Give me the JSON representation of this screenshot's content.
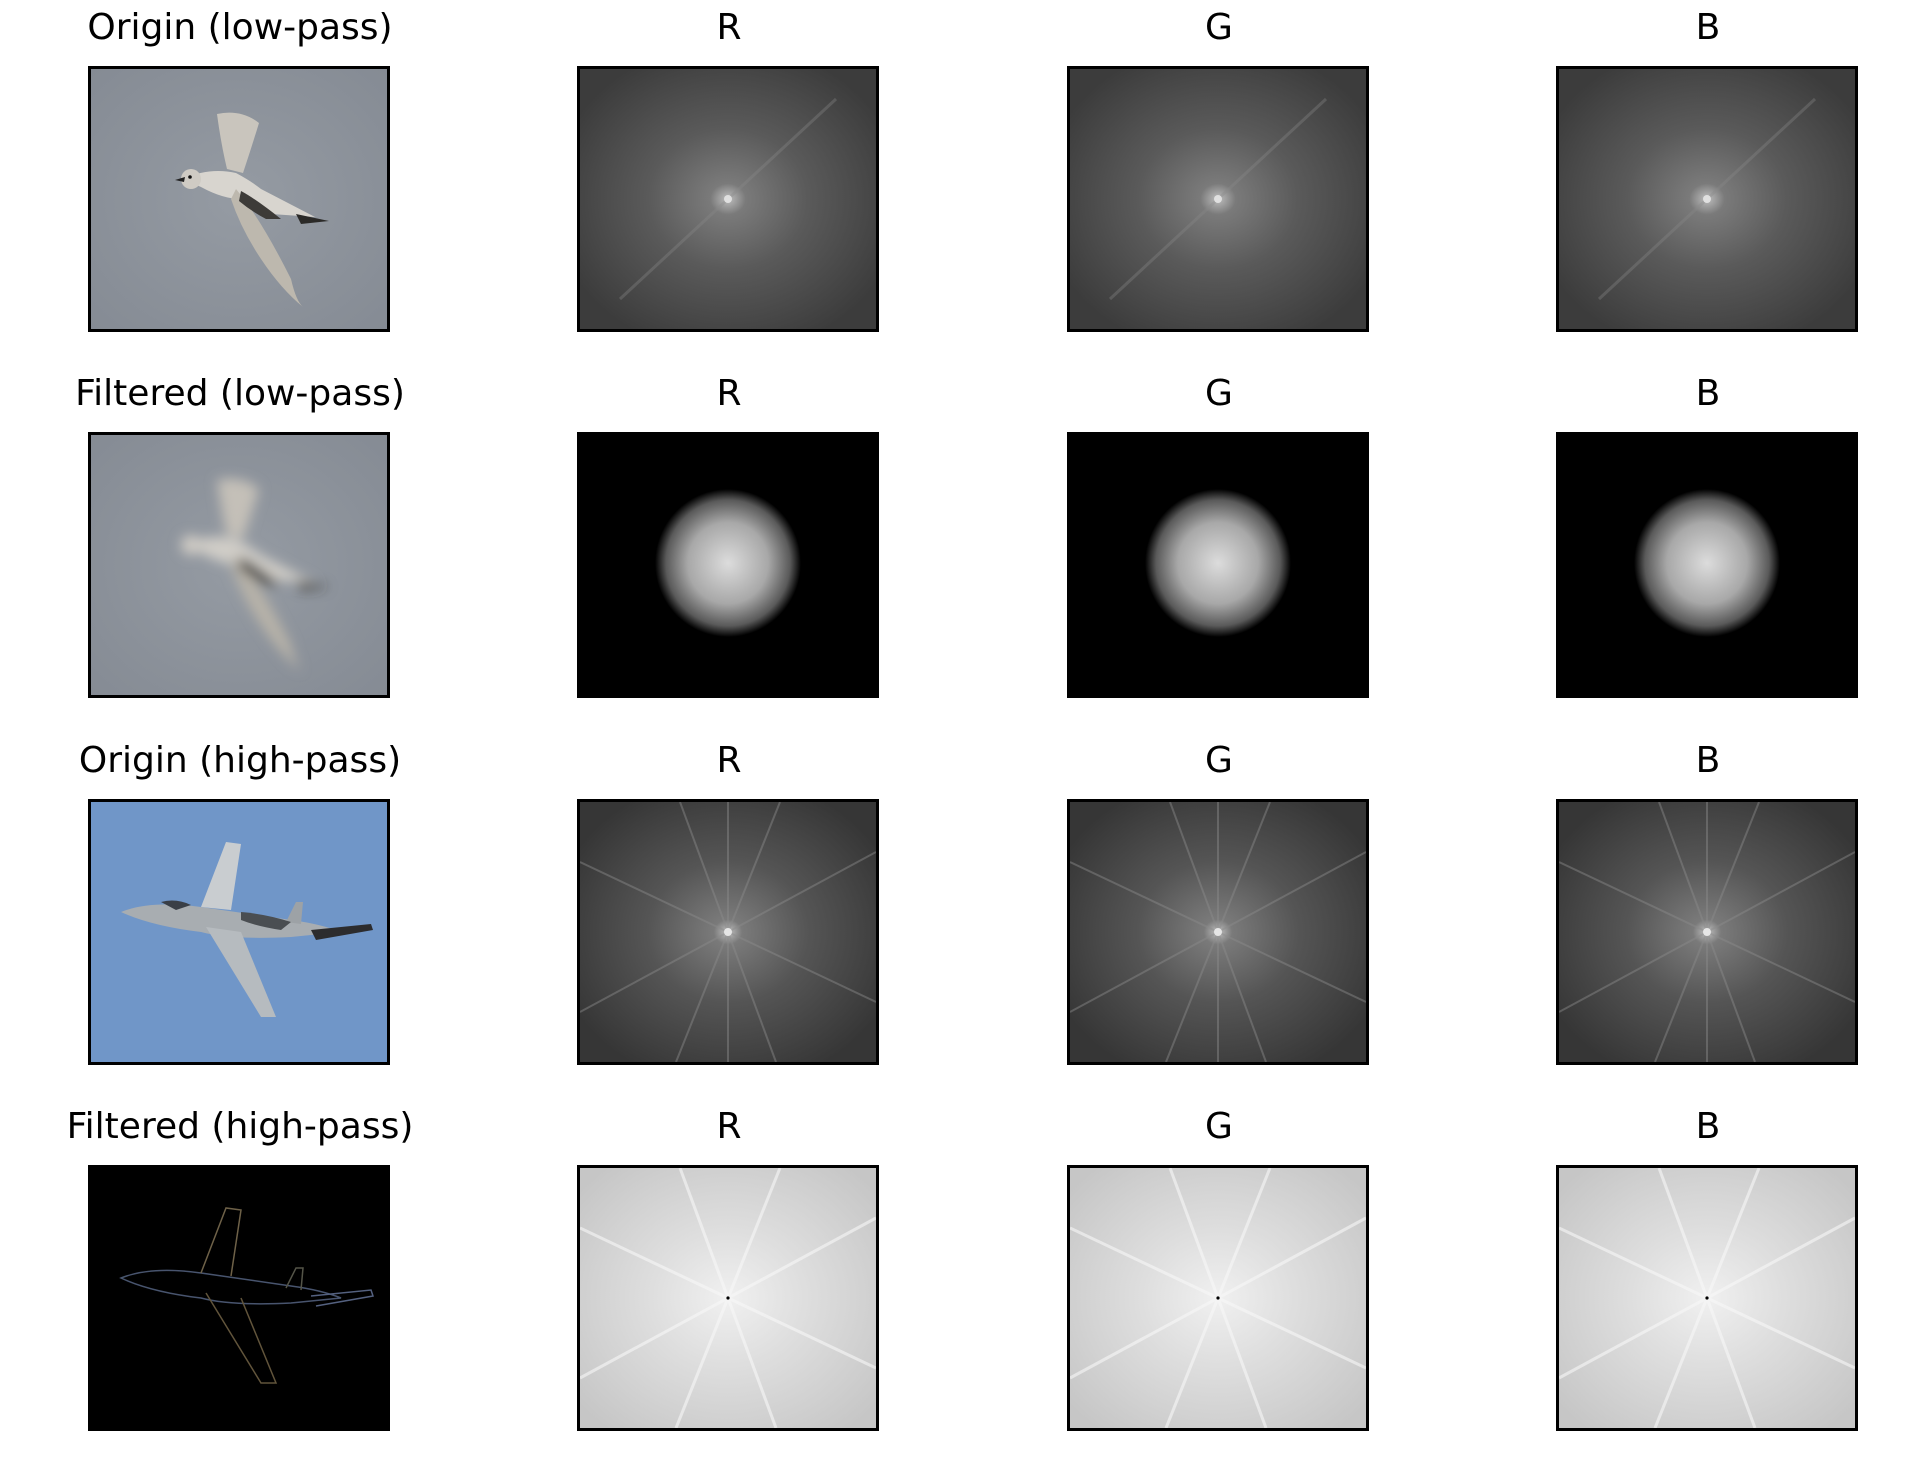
{
  "figure": {
    "rows": [
      {
        "id": "origin-low-pass",
        "panels": [
          {
            "title": "Origin (low-pass)",
            "kind": "photo-bird",
            "filtered": false
          },
          {
            "title": "R",
            "kind": "spectrum-natural"
          },
          {
            "title": "G",
            "kind": "spectrum-natural"
          },
          {
            "title": "B",
            "kind": "spectrum-natural"
          }
        ]
      },
      {
        "id": "filtered-low-pass",
        "panels": [
          {
            "title": "Filtered (low-pass)",
            "kind": "photo-bird-blurred",
            "filtered": true
          },
          {
            "title": "R",
            "kind": "spectrum-lowpass"
          },
          {
            "title": "G",
            "kind": "spectrum-lowpass"
          },
          {
            "title": "B",
            "kind": "spectrum-lowpass"
          }
        ]
      },
      {
        "id": "origin-high-pass",
        "panels": [
          {
            "title": "Origin (high-pass)",
            "kind": "photo-jet",
            "filtered": false
          },
          {
            "title": "R",
            "kind": "spectrum-jet"
          },
          {
            "title": "G",
            "kind": "spectrum-jet"
          },
          {
            "title": "B",
            "kind": "spectrum-jet"
          }
        ]
      },
      {
        "id": "filtered-high-pass",
        "panels": [
          {
            "title": "Filtered (high-pass)",
            "kind": "photo-jet-edges",
            "filtered": true
          },
          {
            "title": "R",
            "kind": "spectrum-highpass"
          },
          {
            "title": "G",
            "kind": "spectrum-highpass"
          },
          {
            "title": "B",
            "kind": "spectrum-highpass"
          }
        ]
      }
    ],
    "colors": {
      "bird_background": "#8a9099",
      "jet_sky": "#7096c8",
      "spectrum_dark": "#3a3a3a",
      "spectrum_light": "#d0d0d0",
      "lowpass_background": "#000000",
      "edges_background": "#000000"
    }
  }
}
